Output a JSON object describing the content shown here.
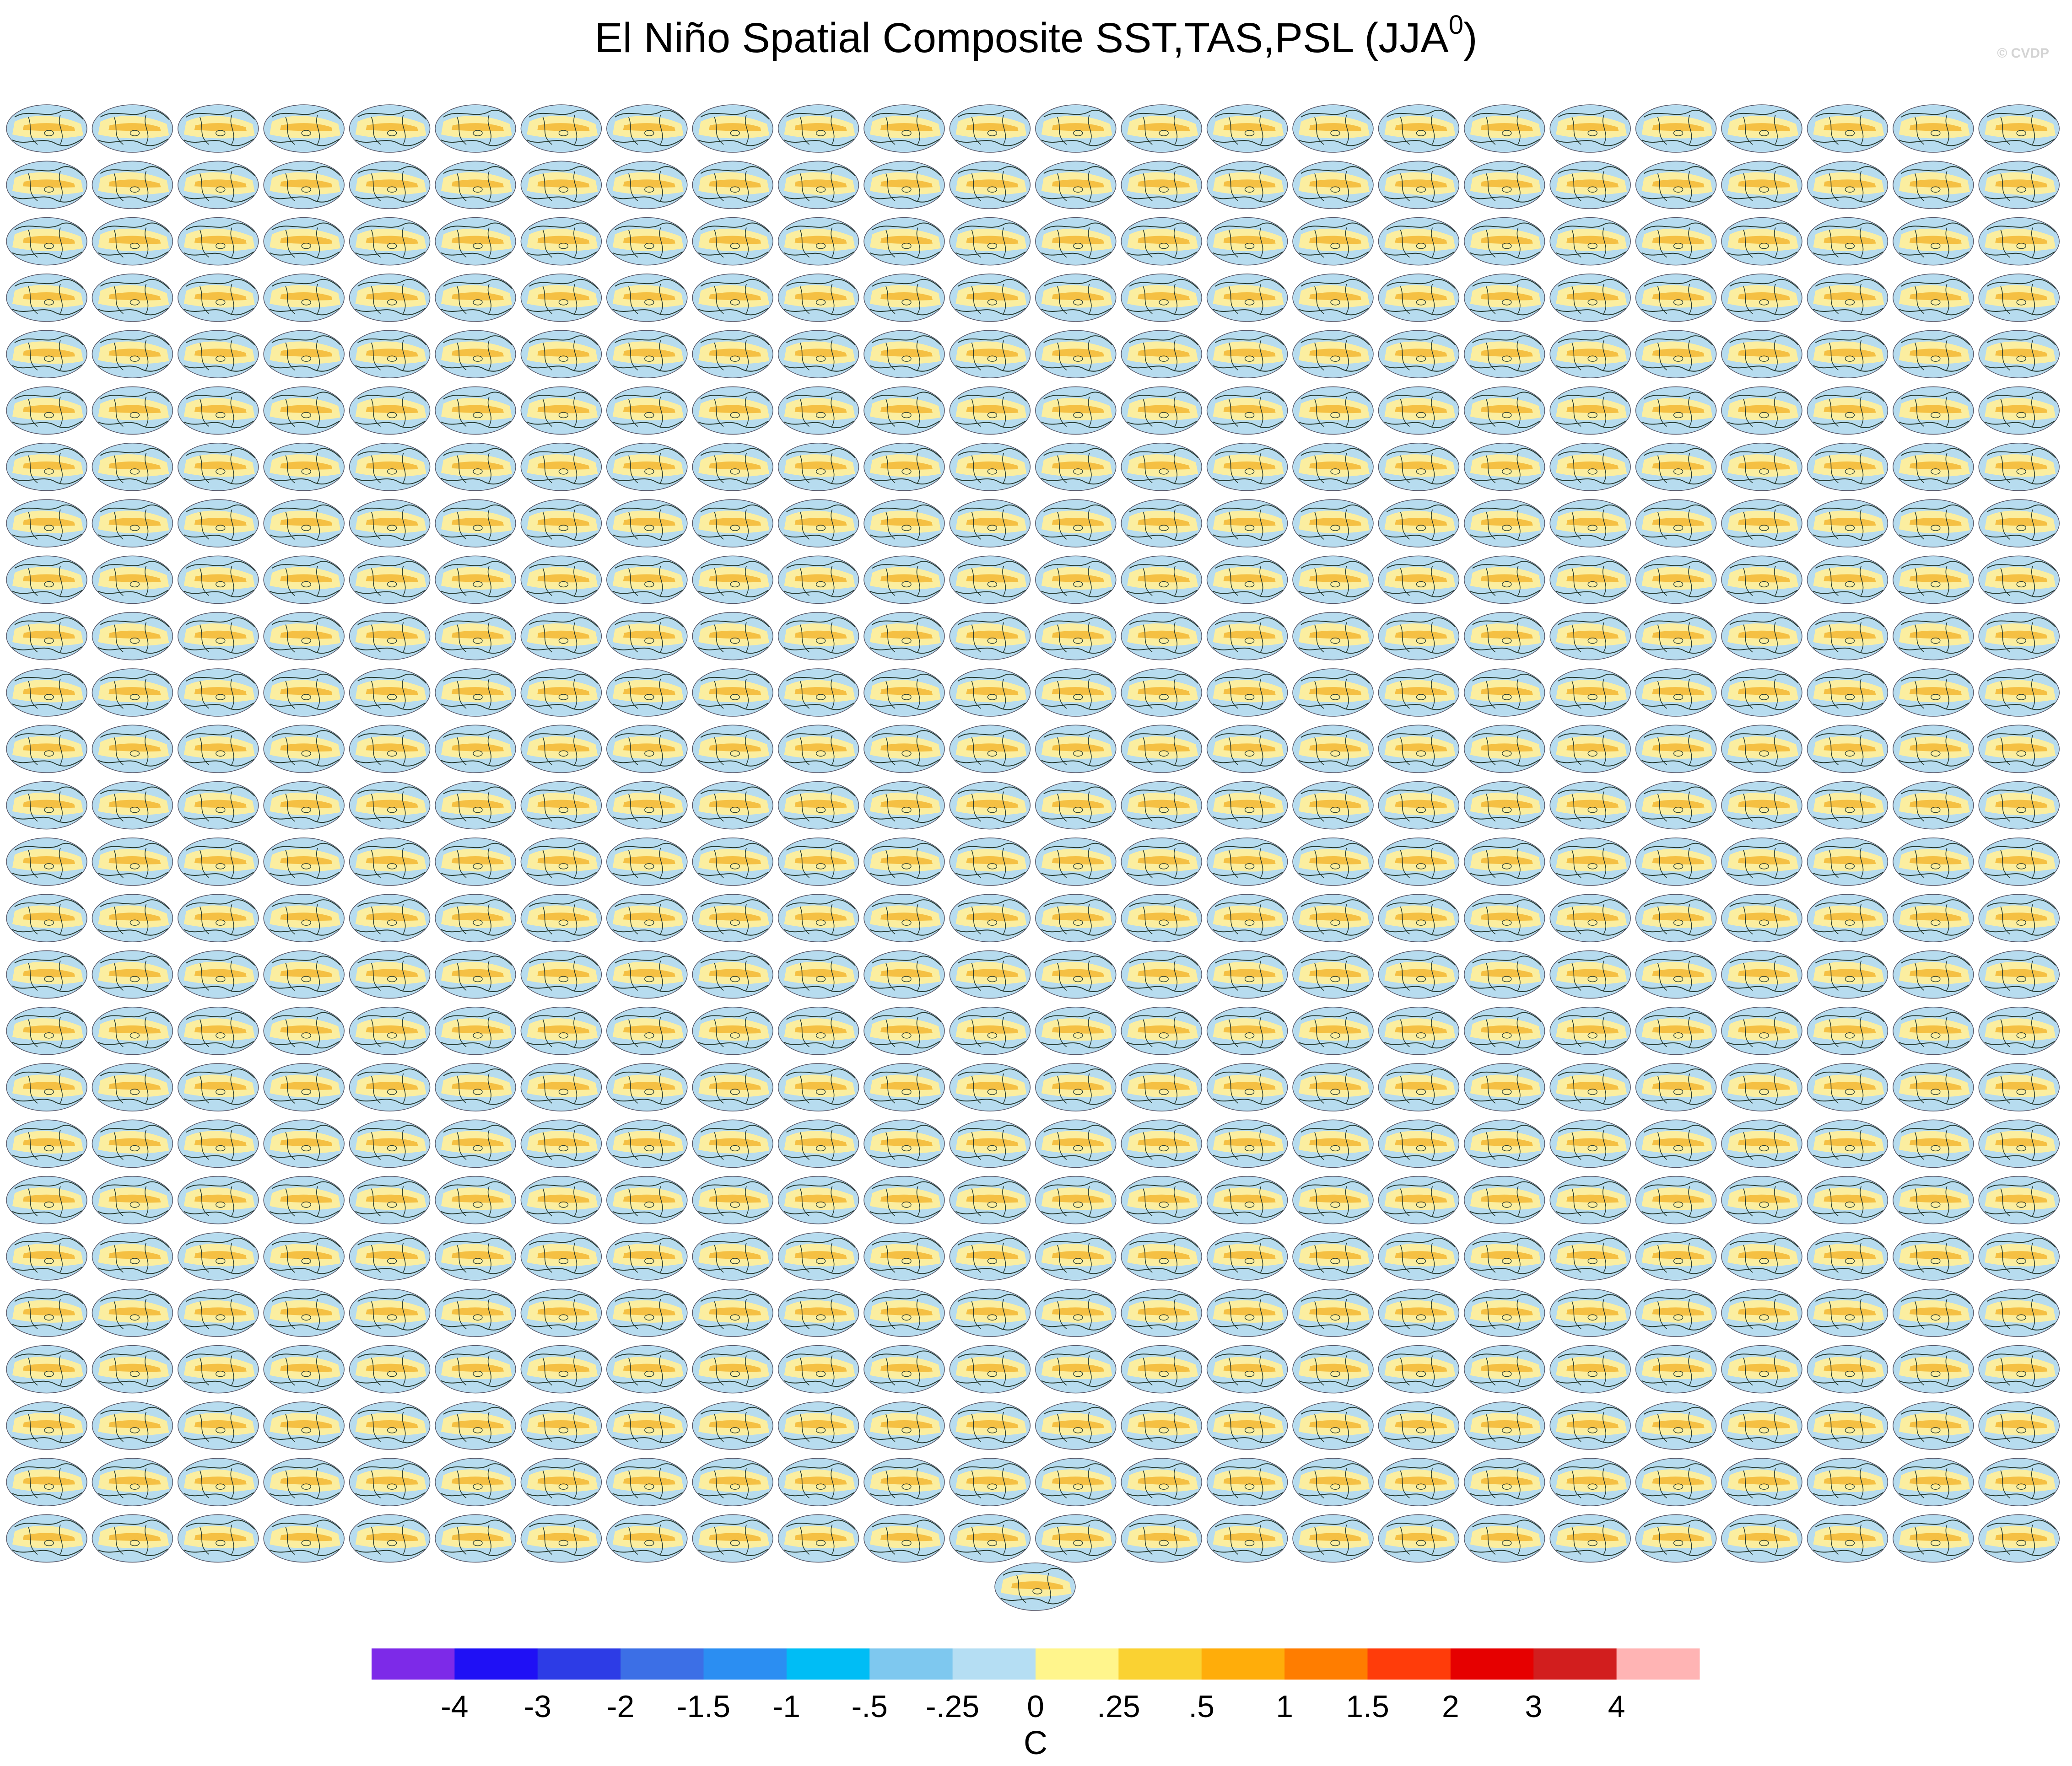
{
  "title": {
    "main": "El Niño Spatial Composite SST,TAS,PSL (JJA",
    "superscript": "0",
    "close": ")"
  },
  "watermark": "© CVDP",
  "chart_data": {
    "type": "heatmap",
    "panel_layout": {
      "rows": 26,
      "columns": 24,
      "extra_bottom_panels": 1
    },
    "projection": "global ellipse map panels with sea level pressure contour lines",
    "colorbar": {
      "unit": "C",
      "tick_labels": [
        "-4",
        "-3",
        "-2",
        "-1.5",
        "-1",
        "-.5",
        "-.25",
        "0",
        ".25",
        ".5",
        "1",
        "1.5",
        "2",
        "3",
        "4"
      ],
      "colors": [
        "#7d2ae8",
        "#1f10f5",
        "#2d3ce6",
        "#3c6fe6",
        "#2b8ef2",
        "#00bdf5",
        "#7ec8ef",
        "#b5def3",
        "#fff58c",
        "#fad232",
        "#ffad0a",
        "#ff7d00",
        "#ff3c0a",
        "#e60000",
        "#d21e1e",
        "#ffb4b4"
      ]
    },
    "palette": {
      "ocean_warm": "#f5c043",
      "ocean_neutral": "#fbeea0",
      "cool": "#b7dcef",
      "contour": "#283c32"
    }
  }
}
